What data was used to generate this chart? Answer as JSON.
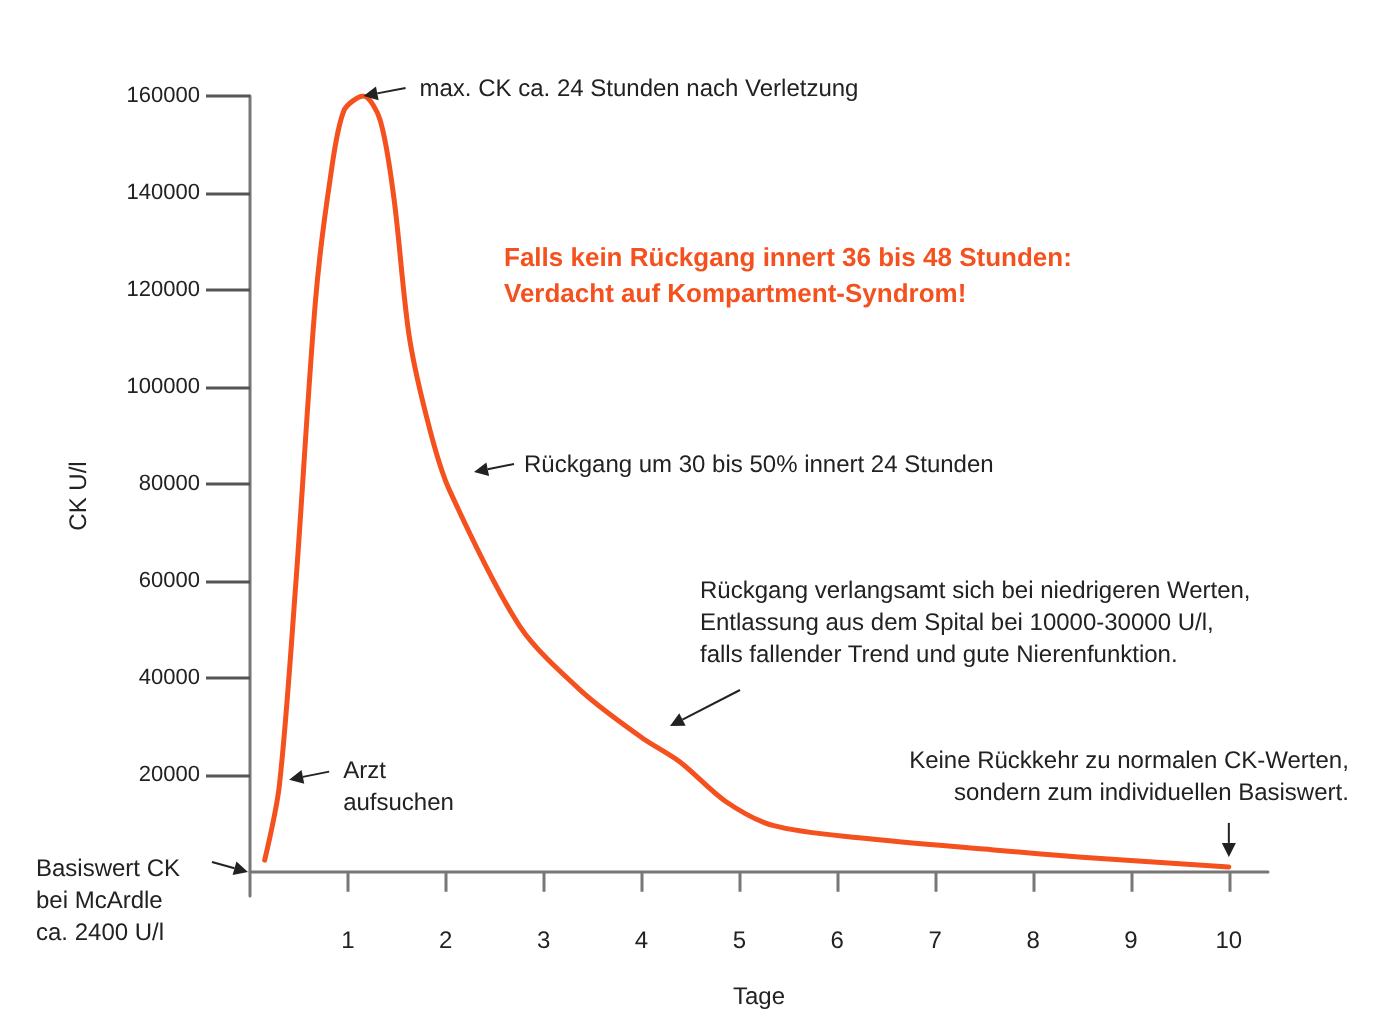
{
  "chart_data": {
    "type": "line",
    "xlabel": "Tage",
    "ylabel": "CK U/l",
    "x": [
      0.15,
      0.3,
      0.47,
      0.67,
      0.82,
      0.96,
      1.16,
      1.33,
      1.47,
      1.63,
      1.84,
      2.04,
      2.76,
      3.4,
      4,
      4.39,
      4.86,
      5.35,
      6.22,
      7.6,
      8.5,
      10
    ],
    "series": [
      {
        "color": "#f4511e",
        "values": [
          2400,
          17800,
          60000,
          118000,
          143000,
          157000,
          160000,
          155000,
          139000,
          110000,
          91000,
          78600,
          50500,
          37000,
          27700,
          22700,
          14500,
          9500,
          7000,
          4500,
          3000,
          1000
        ]
      }
    ],
    "xlim": [
      0,
      10.4
    ],
    "xticks": [
      1,
      2,
      3,
      4,
      5,
      6,
      7,
      8,
      9,
      10
    ],
    "ylim": [
      -5000,
      160000
    ],
    "yticks": [
      20000,
      40000,
      60000,
      80000,
      100000,
      120000,
      140000,
      160000
    ],
    "grid": false,
    "marker": "none",
    "line_style": "solid",
    "annotations": [
      {
        "text": "max. CK ca. 24 Stunden nach Verletzung",
        "x": 1.16,
        "y": 160000
      },
      "Falls kein Rückgang innert 36 bis 48 Stunden:\nVerdacht auf Kompartment-Syndrom!",
      "Rückgang um 30 bis 50% innert 24 Stunden",
      "Rückgang verlangsamt sich bei niedrigeren Werten,\nEntlassung aus dem Spital bei 10000-30000 U/l,\nfalls fallender Trend und gute Nierenfunktion.",
      {
        "text": "Arzt\naufsuchen",
        "x": 0.4,
        "y": 19000
      },
      "Basiswert CK\nbei McArdle\nca. 2400 U/l",
      {
        "text": "Keine Rückkehr zu normalen CK-Werten,\nsondern zum individuellen Basiswert.",
        "x": 10,
        "y": 1000
      }
    ]
  }
}
